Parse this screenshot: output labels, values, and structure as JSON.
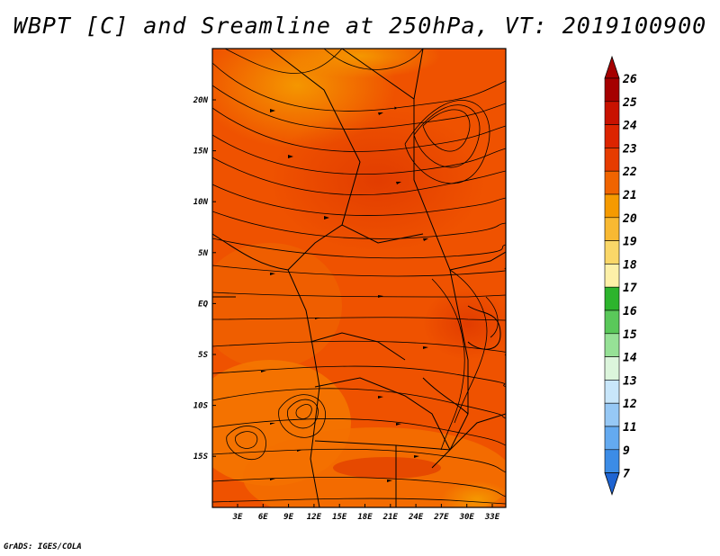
{
  "title": "WBPT [C] and Sreamline at 250hPa, VT: 2019100900",
  "footer": "GrADS: IGES/COLA",
  "map": {
    "lat_labels": [
      "20N",
      "15N",
      "10N",
      "5N",
      "EQ",
      "5S",
      "10S",
      "15S"
    ],
    "lon_labels": [
      "3E",
      "6E",
      "9E",
      "12E",
      "15E",
      "18E",
      "21E",
      "24E",
      "27E",
      "30E",
      "33E"
    ],
    "lon_range": [
      0,
      35
    ],
    "lat_range": [
      -20,
      25
    ],
    "fields": [
      "wet-bulb potential temperature shading",
      "250hPa streamlines",
      "country boundaries"
    ]
  },
  "colorbar": {
    "levels": [
      "26",
      "25",
      "24",
      "23",
      "22",
      "21",
      "20",
      "19",
      "18",
      "17",
      "16",
      "15",
      "14",
      "13",
      "12",
      "11",
      "9",
      "7"
    ],
    "colors": [
      "#a50000",
      "#c81200",
      "#dc2400",
      "#e63c00",
      "#f06400",
      "#f59a00",
      "#f8b932",
      "#fad768",
      "#fdf0a8",
      "#2db42d",
      "#5ac85a",
      "#96e196",
      "#dcf5dc",
      "#c8e6fa",
      "#96c8f5",
      "#64aaf0",
      "#3c8ce6",
      "#1e64d2"
    ],
    "cap_top_color": "#a50000",
    "cap_bottom_color": "#1e64d2"
  }
}
